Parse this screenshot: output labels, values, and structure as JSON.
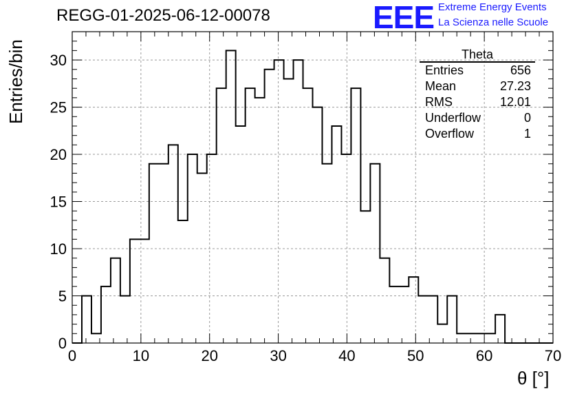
{
  "title": "REGG-01-2025-06-12-00078",
  "logo": {
    "mark": "EEE",
    "line1": "Extreme Energy Events",
    "line2": "La Scienza nelle Scuole",
    "color": "#1a1aff"
  },
  "stats": {
    "name": "Theta",
    "rows": [
      {
        "label": "Entries",
        "value": "656"
      },
      {
        "label": "Mean",
        "value": "27.23"
      },
      {
        "label": "RMS",
        "value": "12.01"
      },
      {
        "label": "Underflow",
        "value": "0"
      },
      {
        "label": "Overflow",
        "value": "1"
      }
    ]
  },
  "chart_data": {
    "type": "histogram",
    "title": "REGG-01-2025-06-12-00078",
    "xlabel": "θ [°]",
    "ylabel": "Entries/bin",
    "xlim": [
      0,
      70
    ],
    "ylim": [
      0,
      33
    ],
    "grid": true,
    "x_ticks": [
      0,
      10,
      20,
      30,
      40,
      50,
      60,
      70
    ],
    "y_ticks": [
      0,
      5,
      10,
      15,
      20,
      25,
      30
    ],
    "bin_width": 1.4,
    "bin_start": 0,
    "values": [
      0,
      5,
      1,
      6,
      9,
      5,
      11,
      11,
      19,
      19,
      21,
      13,
      20,
      18,
      20,
      27,
      31,
      23,
      27,
      26,
      29,
      30,
      28,
      30,
      27,
      25,
      19,
      23,
      20,
      27,
      14,
      19,
      9,
      6,
      6,
      7,
      5,
      5,
      2,
      5,
      1,
      1,
      1,
      1,
      3,
      0,
      0,
      0,
      0,
      0
    ]
  }
}
